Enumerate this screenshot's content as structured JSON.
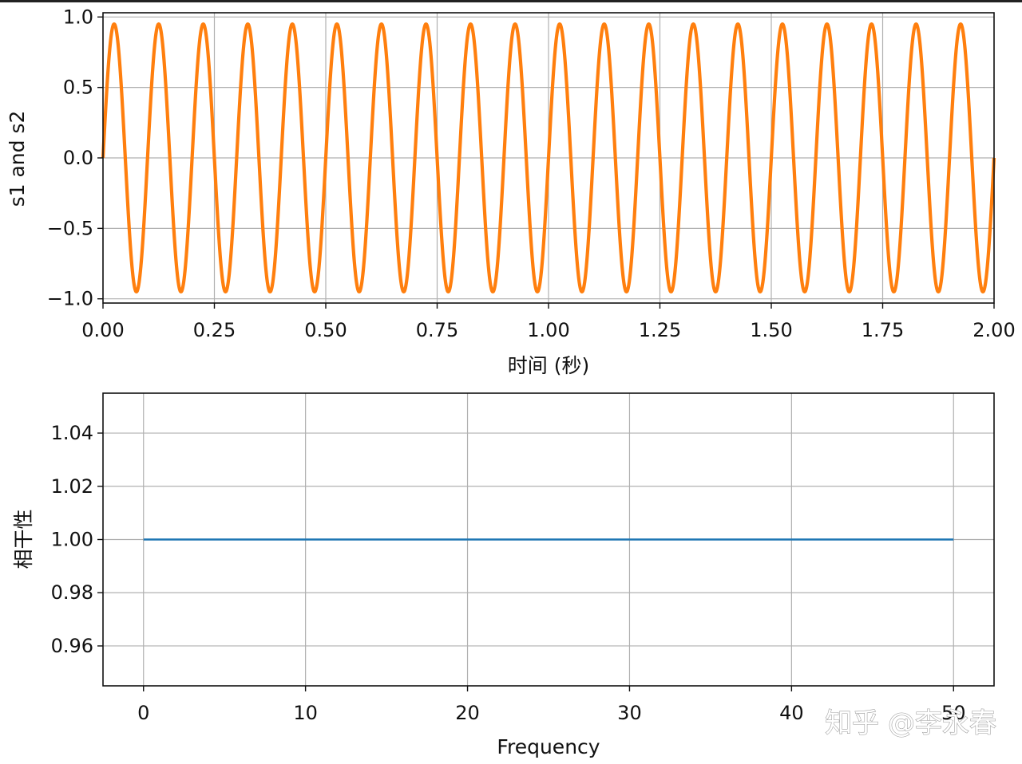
{
  "watermark": "知乎 @李永春",
  "chart_data": [
    {
      "type": "line",
      "xlabel": "时间 (秒)",
      "ylabel": "s1 and s2",
      "xlim": [
        0,
        2
      ],
      "ylim": [
        -1.03,
        1.03
      ],
      "x_ticks": [
        "0.00",
        "0.25",
        "0.50",
        "0.75",
        "1.00",
        "1.25",
        "1.50",
        "1.75",
        "2.00"
      ],
      "y_ticks": [
        "1.0",
        "0.5",
        "0.0",
        "−0.5",
        "−1.0"
      ],
      "grid": true,
      "series": [
        {
          "frequency_hz": 10,
          "amplitude": 0.95,
          "color": "#1f77b4"
        },
        {
          "frequency_hz": 10,
          "amplitude": 0.95,
          "color": "#ff7f0e"
        }
      ]
    },
    {
      "type": "line",
      "xlabel": "Frequency",
      "ylabel": "相干性",
      "xlim": [
        -2.5,
        52.5
      ],
      "ylim": [
        0.945,
        1.055
      ],
      "x_ticks": [
        "0",
        "10",
        "20",
        "30",
        "40",
        "50"
      ],
      "y_ticks": [
        "1.04",
        "1.02",
        "1.00",
        "0.98",
        "0.96"
      ],
      "grid": true,
      "series": [
        {
          "x": [
            0,
            50
          ],
          "y": [
            1.0,
            1.0
          ],
          "color": "#1f77b4"
        }
      ]
    }
  ]
}
